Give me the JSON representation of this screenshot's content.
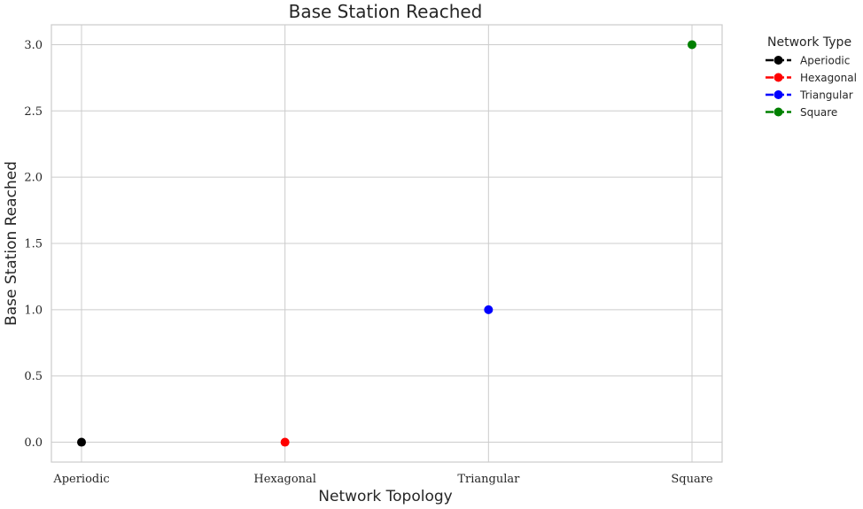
{
  "chart_data": {
    "type": "scatter",
    "title": "Base Station Reached",
    "xlabel": "Network Topology",
    "ylabel": "Base Station Reached",
    "categories": [
      "Aperiodic",
      "Hexagonal",
      "Triangular",
      "Square"
    ],
    "ylim": [
      -0.15,
      3.15
    ],
    "yticks": [
      "0.0",
      "0.5",
      "1.0",
      "1.5",
      "2.0",
      "2.5",
      "3.0"
    ],
    "grid": true,
    "legend": {
      "title": "Network Type",
      "placement": "outside-top-right",
      "entries": [
        "Aperiodic",
        "Hexagonal",
        "Triangular",
        "Square"
      ]
    },
    "series": [
      {
        "name": "Aperiodic",
        "color": "#000000",
        "x": "Aperiodic",
        "y": 0
      },
      {
        "name": "Hexagonal",
        "color": "#ff0000",
        "x": "Hexagonal",
        "y": 0
      },
      {
        "name": "Triangular",
        "color": "#0000ff",
        "x": "Triangular",
        "y": 1
      },
      {
        "name": "Square",
        "color": "#008000",
        "x": "Square",
        "y": 3
      }
    ]
  }
}
